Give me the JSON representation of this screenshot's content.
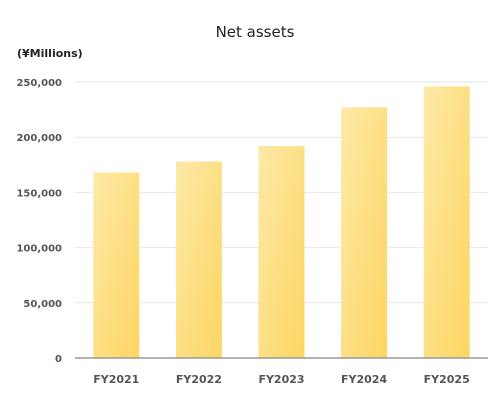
{
  "chart_data": {
    "type": "bar",
    "title": "Net assets",
    "unit_label": "(¥Millions)",
    "categories": [
      "FY2021",
      "FY2022",
      "FY2023",
      "FY2024",
      "FY2025"
    ],
    "values": [
      168000,
      178000,
      192000,
      227000,
      246000
    ],
    "ylim": [
      0,
      250000
    ],
    "yticks": [
      0,
      50000,
      100000,
      150000,
      200000,
      250000
    ],
    "ytick_labels": [
      "0",
      "50,000",
      "100,000",
      "150,000",
      "200,000",
      "250,000"
    ],
    "grid": true,
    "legend": "none"
  },
  "colors": {
    "bar_light": "#fde9a8",
    "bar_dark": "#fdd662",
    "grid": "#e6e6e6",
    "axis": "#999999"
  }
}
